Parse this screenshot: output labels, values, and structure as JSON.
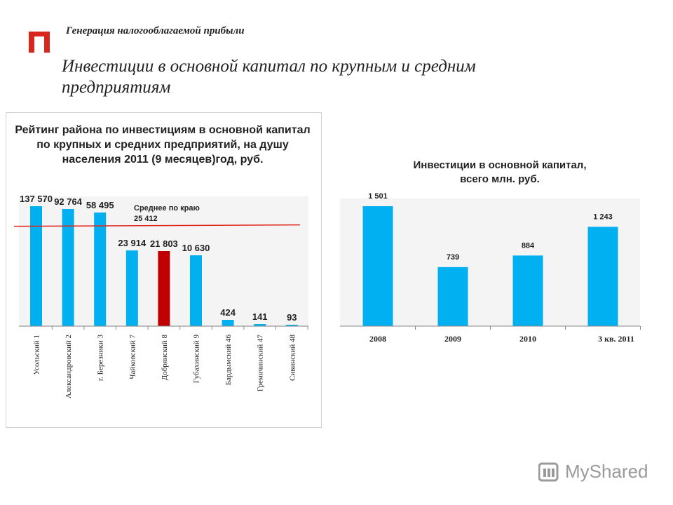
{
  "header": {
    "subtitle": "Генерация налогооблагаемой прибыли",
    "title": "Инвестиции в основной капитал по крупным и средним предприятиям",
    "logo_color": "#d9261c"
  },
  "watermark": {
    "text": "MyShared",
    "icon": "mr-logo-icon"
  },
  "chart_data": [
    {
      "type": "bar",
      "title": "Рейтинг района по инвестициям в основной капитал по крупных и средних предприятий, на душу населения 2011 (9 месяцев)год, руб.",
      "title_lines": [
        "Рейтинг района по инвестициям в основной капитал",
        "по крупных и средних предприятий, на душу",
        "населения 2011 (9 месяцев)год, руб."
      ],
      "categories": [
        "Усольский 1",
        "Александровский 2",
        "г. Березники 3",
        "Чайковский 7",
        "Добрянский 8",
        "Губахинский 9",
        "Бардымский 46",
        "Гремячинский 47",
        "Сивинский 48"
      ],
      "values": [
        137570,
        92764,
        58495,
        23914,
        21803,
        10630,
        424,
        141,
        93
      ],
      "value_labels": [
        "137 570",
        "92 764",
        "58 495",
        "23 914",
        "21 803",
        "10 630",
        "424",
        "141",
        "93"
      ],
      "highlight_index": 4,
      "bar_color": "#00b0f0",
      "highlight_color": "#c00000",
      "reference_line": {
        "label_line1": "Среднее по краю",
        "label_line2": "25 412",
        "value": 25412,
        "color": "#e0261c"
      },
      "grid": false
    },
    {
      "type": "bar",
      "title": "Инвестиции в основной капитал, всего млн. руб.",
      "title_lines": [
        "Инвестиции в основной капитал,",
        "всего млн. руб."
      ],
      "categories": [
        "2008",
        "2009",
        "2010",
        "3 кв. 2011"
      ],
      "values": [
        1501,
        739,
        884,
        1243
      ],
      "value_labels": [
        "1 501",
        "739",
        "884",
        "1 243"
      ],
      "bar_color": "#00b0f0",
      "ylim": [
        0,
        1501
      ],
      "grid": false
    }
  ]
}
